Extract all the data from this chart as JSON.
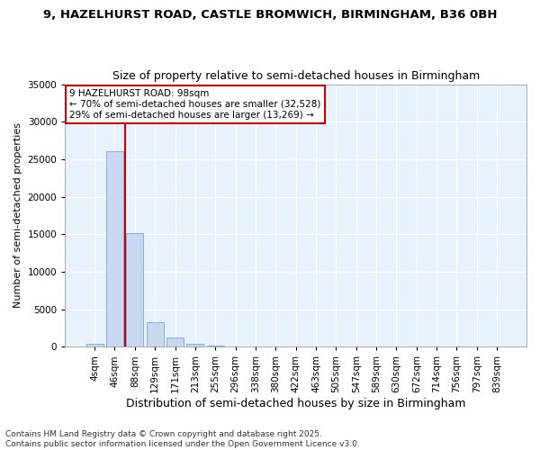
{
  "title_line1": "9, HAZELHURST ROAD, CASTLE BROMWICH, BIRMINGHAM, B36 0BH",
  "title_line2": "Size of property relative to semi-detached houses in Birmingham",
  "xlabel": "Distribution of semi-detached houses by size in Birmingham",
  "ylabel": "Number of semi-detached properties",
  "categories": [
    "4sqm",
    "46sqm",
    "88sqm",
    "129sqm",
    "171sqm",
    "213sqm",
    "255sqm",
    "296sqm",
    "338sqm",
    "380sqm",
    "422sqm",
    "463sqm",
    "505sqm",
    "547sqm",
    "589sqm",
    "630sqm",
    "672sqm",
    "714sqm",
    "756sqm",
    "797sqm",
    "839sqm"
  ],
  "values": [
    400,
    26100,
    15200,
    3250,
    1200,
    450,
    200,
    50,
    0,
    0,
    0,
    0,
    0,
    0,
    0,
    0,
    0,
    0,
    0,
    0,
    0
  ],
  "bar_color": "#c8d8f0",
  "bar_edge_color": "#7aaad0",
  "property_line_color": "#cc0000",
  "annotation_text": "9 HAZELHURST ROAD: 98sqm\n← 70% of semi-detached houses are smaller (32,528)\n29% of semi-detached houses are larger (13,269) →",
  "annotation_box_facecolor": "#ffffff",
  "annotation_box_edgecolor": "#cc0000",
  "ylim": [
    0,
    35000
  ],
  "yticks": [
    0,
    5000,
    10000,
    15000,
    20000,
    25000,
    30000,
    35000
  ],
  "footer_line1": "Contains HM Land Registry data © Crown copyright and database right 2025.",
  "footer_line2": "Contains public sector information licensed under the Open Government Licence v3.0.",
  "fig_facecolor": "#ffffff",
  "plot_facecolor": "#e8f2ff",
  "grid_color": "#ffffff",
  "title1_fontsize": 9.5,
  "title2_fontsize": 9,
  "xlabel_fontsize": 9,
  "ylabel_fontsize": 8,
  "tick_fontsize": 7.5,
  "annot_fontsize": 7.5,
  "footer_fontsize": 6.5
}
